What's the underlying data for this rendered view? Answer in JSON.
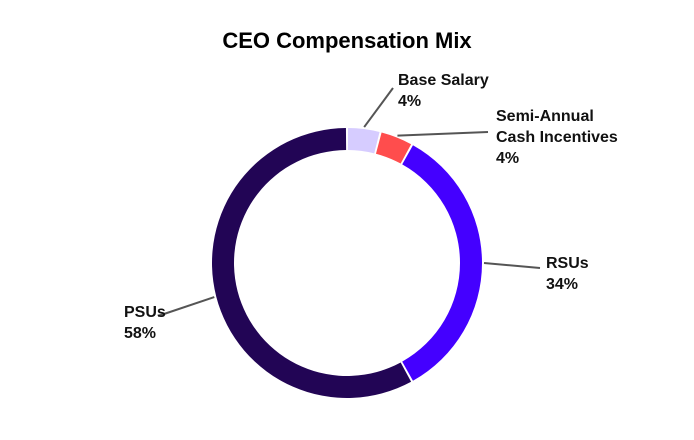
{
  "chart_data": {
    "type": "pie",
    "title": "CEO Compensation Mix",
    "donut": true,
    "slices": [
      {
        "label": "Base Salary",
        "lines": [
          "Base Salary"
        ],
        "value": 4,
        "value_label": "4%",
        "color": "#d6ccff"
      },
      {
        "label": "Semi-Annual Cash Incentives",
        "lines": [
          "Semi-Annual",
          "Cash Incentives"
        ],
        "value": 4,
        "value_label": "4%",
        "color": "#ff4d4d"
      },
      {
        "label": "RSUs",
        "lines": [
          "RSUs"
        ],
        "value": 34,
        "value_label": "34%",
        "color": "#4400ff"
      },
      {
        "label": "PSUs",
        "lines": [
          "PSUs"
        ],
        "value": 58,
        "value_label": "58%",
        "color": "#220555"
      }
    ]
  }
}
